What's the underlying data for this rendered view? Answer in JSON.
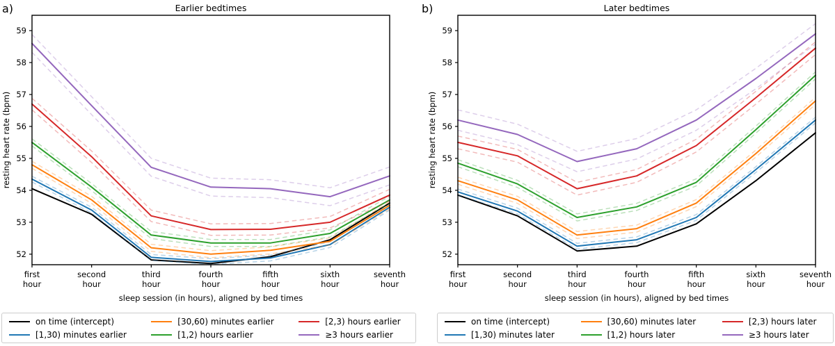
{
  "figure": {
    "panel_labels": {
      "a": "a)",
      "b": "b)"
    }
  },
  "chart_data": [
    {
      "id": "a",
      "type": "line",
      "title": "Earlier bedtimes",
      "xlabel": "sleep session (in hours), aligned by bed times",
      "ylabel": "resting heart rate (bpm)",
      "categories": [
        [
          "first",
          "hour"
        ],
        [
          "second",
          "hour"
        ],
        [
          "third",
          "hour"
        ],
        [
          "fourth",
          "hour"
        ],
        [
          "fifth",
          "hour"
        ],
        [
          "sixth",
          "hour"
        ],
        [
          "seventh",
          "hour"
        ]
      ],
      "yticks": [
        52,
        53,
        54,
        55,
        56,
        57,
        58,
        59
      ],
      "ylim": [
        51.67,
        59.48
      ],
      "grid": false,
      "legend_position": "bottom",
      "ci_style": "dashed",
      "series": [
        {
          "name": "on time (intercept)",
          "color": "#000000",
          "ci_halfwidth": 0,
          "values": [
            54.05,
            53.25,
            51.82,
            51.71,
            51.92,
            52.45,
            53.6
          ]
        },
        {
          "name": "[1,30) minutes earlier",
          "color": "#1f77b4",
          "ci_halfwidth": 0.09,
          "values": [
            54.35,
            53.38,
            51.9,
            51.77,
            51.88,
            52.3,
            53.47
          ]
        },
        {
          "name": "[30,60) minutes earlier",
          "color": "#ff7f0e",
          "ci_halfwidth": 0.11,
          "values": [
            54.8,
            53.7,
            52.2,
            52.0,
            52.12,
            52.4,
            53.53
          ]
        },
        {
          "name": "[1,2) hours earlier",
          "color": "#2ca02c",
          "ci_halfwidth": 0.11,
          "values": [
            55.5,
            54.1,
            52.6,
            52.35,
            52.35,
            52.65,
            53.7
          ]
        },
        {
          "name": "[2,3) hours earlier",
          "color": "#d62728",
          "ci_halfwidth": 0.18,
          "values": [
            56.7,
            55.05,
            53.2,
            52.77,
            52.78,
            53.0,
            53.85
          ]
        },
        {
          "name": "≥3 hours earlier",
          "color": "#9467bd",
          "ci_halfwidth": 0.28,
          "values": [
            58.6,
            56.65,
            54.72,
            54.1,
            54.05,
            53.8,
            54.45
          ]
        }
      ]
    },
    {
      "id": "b",
      "type": "line",
      "title": "Later bedtimes",
      "xlabel": "sleep session (in hours), aligned by bed times",
      "ylabel": "resting heart rate (bpm)",
      "categories": [
        [
          "first",
          "hour"
        ],
        [
          "second",
          "hour"
        ],
        [
          "third",
          "hour"
        ],
        [
          "fourth",
          "hour"
        ],
        [
          "fifth",
          "hour"
        ],
        [
          "sixth",
          "hour"
        ],
        [
          "seventh",
          "hour"
        ]
      ],
      "yticks": [
        52,
        53,
        54,
        55,
        56,
        57,
        58,
        59
      ],
      "ylim": [
        51.67,
        59.48
      ],
      "grid": false,
      "legend_position": "bottom",
      "ci_style": "dashed",
      "series": [
        {
          "name": "on time (intercept)",
          "color": "#000000",
          "ci_halfwidth": 0,
          "values": [
            53.85,
            53.2,
            52.1,
            52.25,
            52.95,
            54.3,
            55.8
          ]
        },
        {
          "name": "[1,30) minutes later",
          "color": "#1f77b4",
          "ci_halfwidth": 0.09,
          "values": [
            53.95,
            53.35,
            52.25,
            52.45,
            53.15,
            54.65,
            56.2
          ]
        },
        {
          "name": "[30,60) minutes later",
          "color": "#ff7f0e",
          "ci_halfwidth": 0.11,
          "values": [
            54.3,
            53.7,
            52.6,
            52.8,
            53.6,
            55.15,
            56.8
          ]
        },
        {
          "name": "[1,2) hours later",
          "color": "#2ca02c",
          "ci_halfwidth": 0.11,
          "values": [
            54.85,
            54.2,
            53.15,
            53.48,
            54.25,
            55.9,
            57.6
          ]
        },
        {
          "name": "[2,3) hours later",
          "color": "#d62728",
          "ci_halfwidth": 0.2,
          "values": [
            55.5,
            55.08,
            54.05,
            54.45,
            55.4,
            56.9,
            58.45
          ]
        },
        {
          "name": "≥3 hours later",
          "color": "#9467bd",
          "ci_halfwidth": 0.32,
          "values": [
            56.2,
            55.75,
            54.9,
            55.3,
            56.2,
            57.5,
            58.9
          ]
        }
      ]
    }
  ]
}
